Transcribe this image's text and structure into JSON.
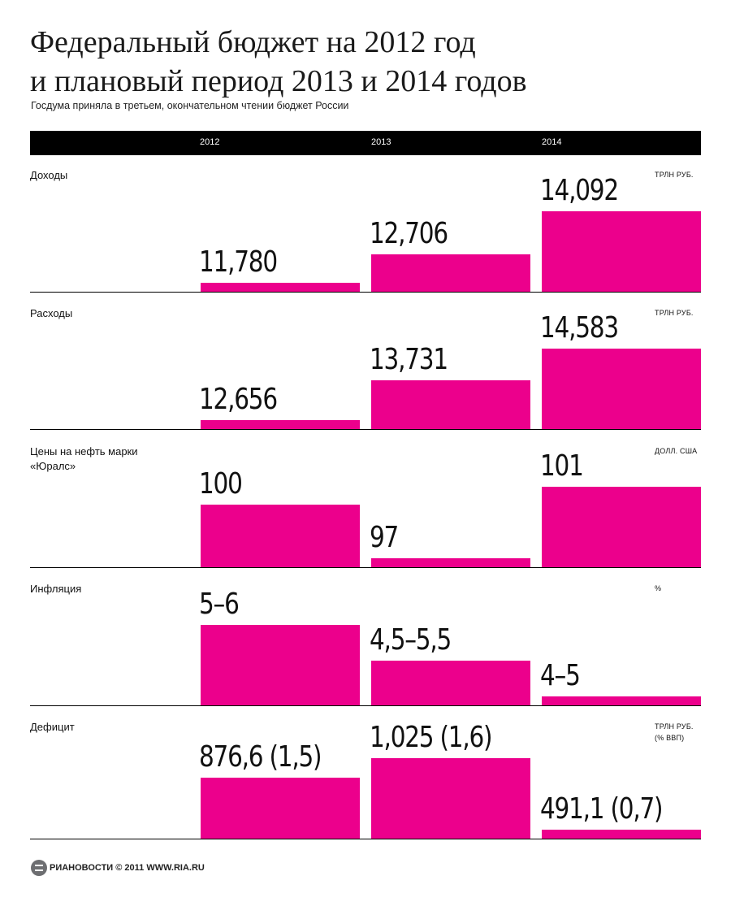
{
  "title_line1": "Федеральный бюджет на 2012 год",
  "title_line2": "и плановый период 2013 и 2014 годов",
  "subtitle": "Госдума приняла в третьем, окончательном чтении бюджет России",
  "footer": "РИАНОВОСТИ © 2011 WWW.RIA.RU",
  "colors": {
    "bar": "#ec008c",
    "header": "#000000"
  },
  "chart_data": {
    "type": "bar",
    "categories": [
      "2012",
      "2013",
      "2014"
    ],
    "sections": [
      {
        "label": "Доходы",
        "unit": "ТРЛН РУБ.",
        "values": [
          11.78,
          12.706,
          14.092
        ],
        "labels": [
          "11,780",
          "12,706",
          "14,092"
        ]
      },
      {
        "label": "Расходы",
        "unit": "ТРЛН РУБ.",
        "values": [
          12.656,
          13.731,
          14.583
        ],
        "labels": [
          "12,656",
          "13,731",
          "14,583"
        ]
      },
      {
        "label": "Цены на нефть марки «Юралс»",
        "unit": "ДОЛЛ. США",
        "values": [
          100,
          97,
          101
        ],
        "labels": [
          "100",
          "97",
          "101"
        ]
      },
      {
        "label": "Инфляция",
        "unit": "%",
        "values": [
          5.5,
          5,
          4.5
        ],
        "labels": [
          "5–6",
          "4,5–5,5",
          "4–5"
        ]
      },
      {
        "label": "Дефицит",
        "unit": "ТРЛН РУБ. (% ВВП)",
        "values": [
          876.6,
          1025,
          491.1
        ],
        "labels": [
          "876,6 (1,5)",
          "1,025 (1,6)",
          "491,1 (0,7)"
        ]
      }
    ]
  }
}
